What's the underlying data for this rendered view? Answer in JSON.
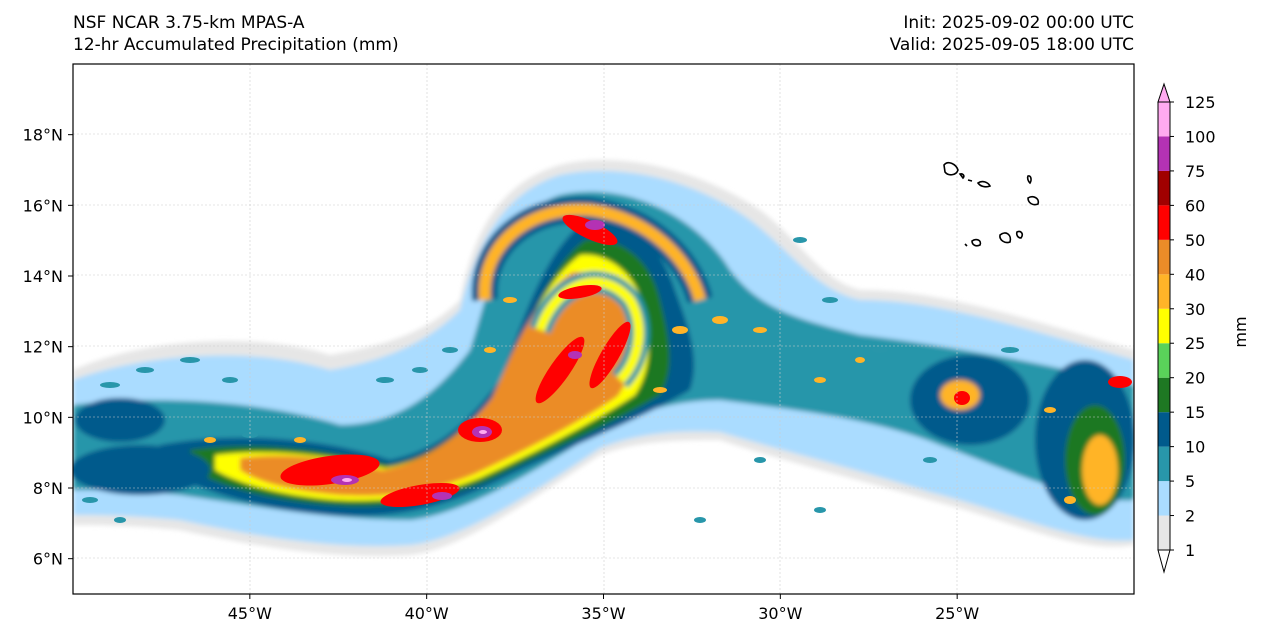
{
  "header": {
    "model": "NSF NCAR 3.75-km MPAS-A",
    "field": "12-hr Accumulated Precipitation (mm)",
    "init": "Init: 2025-09-02 00:00 UTC",
    "valid": "Valid: 2025-09-05 18:00 UTC"
  },
  "map": {
    "lon_range": [
      -50,
      -20
    ],
    "lat_range": [
      5,
      20
    ],
    "lon_ticks": [
      {
        "value": -45,
        "label": "45°W"
      },
      {
        "value": -40,
        "label": "40°W"
      },
      {
        "value": -35,
        "label": "35°W"
      },
      {
        "value": -30,
        "label": "30°W"
      },
      {
        "value": -25,
        "label": "25°W"
      }
    ],
    "lat_ticks": [
      {
        "value": 18,
        "label": "18°N"
      },
      {
        "value": 16,
        "label": "16°N"
      },
      {
        "value": 14,
        "label": "14°N"
      },
      {
        "value": 12,
        "label": "12°N"
      },
      {
        "value": 10,
        "label": "10°N"
      },
      {
        "value": 8,
        "label": "8°N"
      },
      {
        "value": 6,
        "label": "6°N"
      }
    ],
    "feature": "Cabo Verde islands"
  },
  "colorbar": {
    "unit": "mm",
    "levels": [
      "1",
      "2",
      "5",
      "10",
      "15",
      "20",
      "25",
      "30",
      "40",
      "50",
      "60",
      "75",
      "100",
      "125"
    ],
    "colors": [
      "#e6e6e6",
      "#aadcff",
      "#2896aa",
      "#005a8c",
      "#1e7823",
      "#5ad25a",
      "#ffff00",
      "#ffb428",
      "#eb8c28",
      "#ff0000",
      "#a00000",
      "#b432b4",
      "#ffaaf0"
    ]
  }
}
